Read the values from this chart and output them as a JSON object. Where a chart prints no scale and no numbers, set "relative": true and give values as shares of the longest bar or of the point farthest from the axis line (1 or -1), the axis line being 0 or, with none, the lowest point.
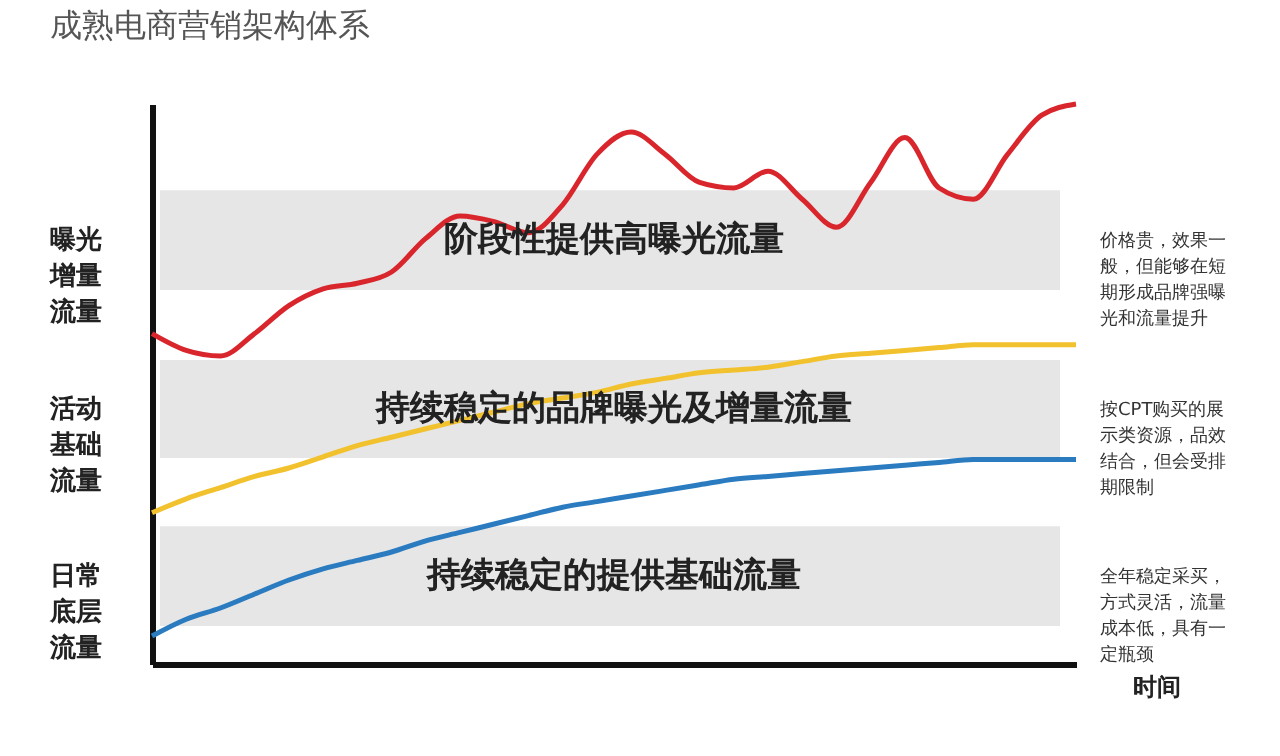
{
  "chart_data": {
    "type": "line",
    "title": "成熟电商营销架构体系",
    "xlabel": "时间",
    "relative": true,
    "grid": false,
    "marker": "none",
    "line_style": "solid",
    "categories": [
      null,
      null,
      null,
      null,
      null,
      null,
      null,
      null,
      null,
      null,
      null,
      null,
      null,
      null,
      null,
      null,
      null,
      null,
      null,
      null,
      null,
      null,
      null,
      null,
      null,
      null,
      null,
      null
    ],
    "series": [
      {
        "color": "#d9262c",
        "values": [
          0.59,
          0.56,
          0.55,
          0.59,
          0.64,
          0.67,
          0.68,
          0.7,
          0.76,
          0.8,
          0.79,
          0.77,
          0.82,
          0.91,
          0.95,
          0.91,
          0.86,
          0.85,
          0.88,
          0.83,
          0.78,
          0.86,
          0.94,
          0.85,
          0.83,
          0.91,
          0.98,
          1.0
        ]
      },
      {
        "color": "#f2c12e",
        "values": [
          0.27,
          0.295,
          0.315,
          0.335,
          0.35,
          0.37,
          0.39,
          0.405,
          0.42,
          0.435,
          0.45,
          0.465,
          0.475,
          0.485,
          0.5,
          0.51,
          0.52,
          0.525,
          0.53,
          0.54,
          0.55,
          0.555,
          0.56,
          0.565,
          0.57,
          0.57,
          0.57,
          0.57
        ]
      },
      {
        "color": "#2a7bc0",
        "values": [
          0.05,
          0.08,
          0.1,
          0.125,
          0.15,
          0.17,
          0.185,
          0.2,
          0.22,
          0.235,
          0.25,
          0.265,
          0.28,
          0.29,
          0.3,
          0.31,
          0.32,
          0.33,
          0.335,
          0.34,
          0.345,
          0.35,
          0.355,
          0.36,
          0.365,
          0.365,
          0.365,
          0.365
        ]
      }
    ],
    "bands": [
      {
        "axis": "y",
        "from": 0.668,
        "to": 0.846,
        "label": "阶段性提供高曝光流量",
        "color": "#e6e6e6"
      },
      {
        "axis": "y",
        "from": 0.368,
        "to": 0.543,
        "label": "持续稳定的品牌曝光及增量流量",
        "color": "#e6e6e6"
      },
      {
        "axis": "y",
        "from": 0.068,
        "to": 0.246,
        "label": "持续稳定的提供基础流量",
        "color": "#e6e6e6"
      }
    ],
    "annotations": [
      "曝光增量流量",
      "活动基础流量",
      "日常底层流量",
      "价格贵，效果一般，但能够在短期形成品牌强曝光和流量提升",
      "按CPT购买的展示类资源，品效结合，但会受排期限制",
      "全年稳定采买，方式灵活，流量成本低，具有一定瓶颈"
    ]
  }
}
